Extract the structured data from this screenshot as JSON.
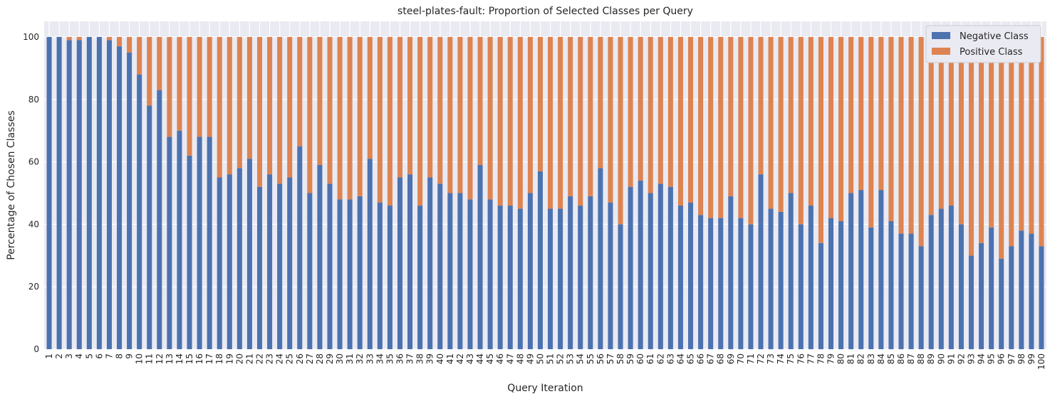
{
  "chart_data": {
    "type": "bar",
    "stacked": true,
    "title": "steel-plates-fault: Proportion of Selected Classes per Query",
    "xlabel": "Query Iteration",
    "ylabel": "Percentage of Chosen Classes",
    "ylim": [
      0,
      105
    ],
    "yticks": [
      0,
      20,
      40,
      60,
      80,
      100
    ],
    "grid": true,
    "legend_position": "top-right",
    "categories": [
      "1",
      "2",
      "3",
      "4",
      "5",
      "6",
      "7",
      "8",
      "9",
      "10",
      "11",
      "12",
      "13",
      "14",
      "15",
      "16",
      "17",
      "18",
      "19",
      "20",
      "21",
      "22",
      "23",
      "24",
      "25",
      "26",
      "27",
      "28",
      "29",
      "30",
      "31",
      "32",
      "33",
      "34",
      "35",
      "36",
      "37",
      "38",
      "39",
      "40",
      "41",
      "42",
      "43",
      "44",
      "45",
      "46",
      "47",
      "48",
      "49",
      "50",
      "51",
      "52",
      "53",
      "54",
      "55",
      "56",
      "57",
      "58",
      "59",
      "60",
      "61",
      "62",
      "63",
      "64",
      "65",
      "66",
      "67",
      "68",
      "69",
      "70",
      "71",
      "72",
      "73",
      "74",
      "75",
      "76",
      "77",
      "78",
      "79",
      "80",
      "81",
      "82",
      "83",
      "84",
      "85",
      "86",
      "87",
      "88",
      "89",
      "90",
      "91",
      "92",
      "93",
      "94",
      "95",
      "96",
      "97",
      "98",
      "99",
      "100"
    ],
    "series": [
      {
        "name": "Negative Class",
        "color": "#4c72b0",
        "values": [
          100,
          100,
          99,
          99,
          100,
          100,
          99,
          97,
          95,
          88,
          78,
          83,
          68,
          70,
          62,
          68,
          68,
          55,
          56,
          58,
          61,
          52,
          56,
          53,
          55,
          65,
          50,
          59,
          53,
          48,
          48,
          49,
          61,
          47,
          46,
          55,
          56,
          46,
          55,
          53,
          50,
          50,
          48,
          59,
          48,
          46,
          46,
          45,
          50,
          57,
          45,
          45,
          49,
          46,
          49,
          58,
          47,
          40,
          52,
          54,
          50,
          53,
          52,
          46,
          47,
          43,
          42,
          42,
          49,
          42,
          40,
          56,
          45,
          44,
          50,
          40,
          46,
          34,
          42,
          41,
          50,
          51,
          39,
          51,
          41,
          37,
          37,
          33,
          43,
          45,
          46,
          40,
          30,
          34,
          39,
          29,
          33,
          38,
          37,
          33
        ]
      },
      {
        "name": "Positive Class",
        "color": "#dd8452",
        "values": [
          0,
          0,
          1,
          1,
          0,
          0,
          1,
          3,
          5,
          12,
          22,
          17,
          32,
          30,
          38,
          32,
          32,
          45,
          44,
          42,
          39,
          48,
          44,
          47,
          45,
          35,
          50,
          41,
          47,
          52,
          52,
          51,
          39,
          53,
          54,
          45,
          44,
          54,
          45,
          47,
          50,
          50,
          52,
          41,
          52,
          54,
          54,
          55,
          50,
          43,
          55,
          55,
          51,
          54,
          51,
          42,
          53,
          60,
          48,
          46,
          50,
          47,
          48,
          54,
          53,
          57,
          58,
          58,
          51,
          58,
          60,
          44,
          55,
          56,
          50,
          60,
          54,
          66,
          58,
          59,
          50,
          49,
          61,
          49,
          59,
          63,
          63,
          67,
          57,
          55,
          54,
          60,
          70,
          66,
          61,
          71,
          67,
          62,
          63,
          67
        ]
      }
    ]
  }
}
